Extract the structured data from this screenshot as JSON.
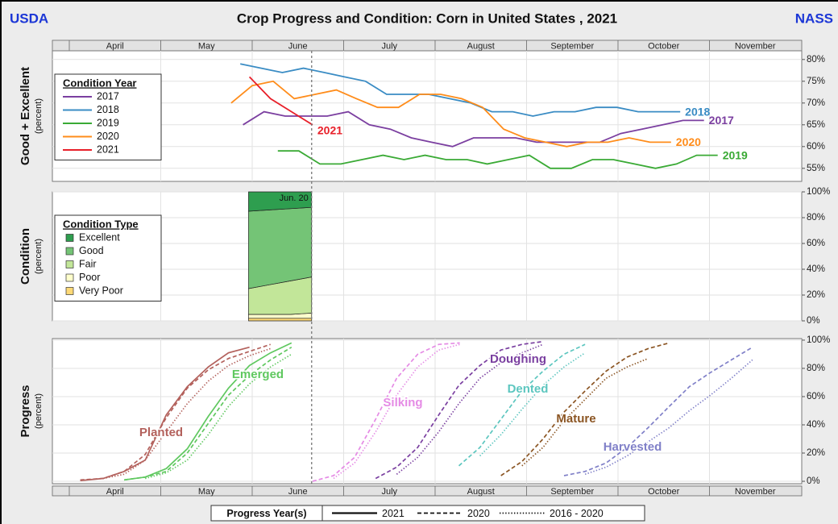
{
  "header": {
    "left": "USDA",
    "title": "Crop Progress and Condition: Corn in United States , 2021",
    "right": "NASS"
  },
  "x_axis": {
    "xlim": [
      -0.185,
      8.009
    ],
    "months": [
      "April",
      "May",
      "June",
      "July",
      "August",
      "September",
      "October",
      "November"
    ]
  },
  "current_week": {
    "x": 2.65,
    "label": "Jun. 20"
  },
  "chart_data": [
    {
      "type": "line",
      "ylabel": "Good + Excellent",
      "ylabel_unit": "(percent)",
      "legend_title": "Condition Year",
      "grid": true,
      "ylim": [
        52,
        82
      ],
      "yticks": [
        {
          "value": 55,
          "label": "55%"
        },
        {
          "value": 60,
          "label": "60%"
        },
        {
          "value": 65,
          "label": "65%"
        },
        {
          "value": 70,
          "label": "70%"
        },
        {
          "value": 75,
          "label": "75%"
        },
        {
          "value": 80,
          "label": "80%"
        }
      ],
      "series": [
        {
          "name": "2017",
          "color": "#7b3fa0",
          "x": [
            1.9,
            2.13,
            2.36,
            2.59,
            2.82,
            3.05,
            3.28,
            3.51,
            3.74,
            3.96,
            4.19,
            4.42,
            4.65,
            4.88,
            5.11,
            5.34,
            5.57,
            5.8,
            6.03,
            6.26,
            6.49,
            6.71,
            6.94
          ],
          "values": [
            65,
            68,
            67,
            67,
            67,
            68,
            65,
            64,
            62,
            61,
            60,
            62,
            62,
            62,
            61,
            61,
            61,
            61,
            63,
            64,
            65,
            66,
            66
          ]
        },
        {
          "name": "2018",
          "color": "#3a8cc4",
          "x": [
            1.87,
            2.1,
            2.33,
            2.56,
            2.79,
            3.01,
            3.24,
            3.47,
            3.7,
            3.93,
            4.16,
            4.39,
            4.62,
            4.85,
            5.07,
            5.3,
            5.53,
            5.76,
            5.99,
            6.22,
            6.45,
            6.68
          ],
          "values": [
            79,
            78,
            77,
            78,
            77,
            76,
            75,
            72,
            72,
            72,
            71,
            70,
            68,
            68,
            67,
            68,
            68,
            69,
            69,
            68,
            68,
            68
          ]
        },
        {
          "name": "2019",
          "color": "#3aaa35",
          "x": [
            2.28,
            2.51,
            2.74,
            2.97,
            3.2,
            3.43,
            3.66,
            3.89,
            4.12,
            4.35,
            4.57,
            4.8,
            5.03,
            5.26,
            5.49,
            5.72,
            5.95,
            6.18,
            6.41,
            6.64,
            6.86,
            7.09
          ],
          "values": [
            59,
            59,
            56,
            56,
            57,
            58,
            57,
            58,
            57,
            57,
            56,
            57,
            58,
            55,
            55,
            57,
            57,
            56,
            55,
            56,
            58,
            58
          ]
        },
        {
          "name": "2020",
          "color": "#ff8c1a",
          "x": [
            1.77,
            2.0,
            2.23,
            2.46,
            2.69,
            2.92,
            3.14,
            3.37,
            3.6,
            3.83,
            4.06,
            4.29,
            4.52,
            4.75,
            4.98,
            5.21,
            5.44,
            5.67,
            5.89,
            6.12,
            6.35,
            6.58
          ],
          "values": [
            70,
            74,
            75,
            71,
            72,
            73,
            71,
            69,
            69,
            72,
            72,
            71,
            69,
            64,
            62,
            61,
            60,
            61,
            61,
            62,
            61,
            61
          ]
        },
        {
          "name": "2021",
          "color": "#e8202a",
          "x": [
            1.97,
            2.2,
            2.43,
            2.66
          ],
          "values": [
            76,
            71,
            68,
            65
          ]
        }
      ]
    },
    {
      "type": "area",
      "ylabel": "Condition",
      "ylabel_unit": "(percent)",
      "legend_title": "Condition Type",
      "grid": true,
      "ylim": [
        0,
        100
      ],
      "yticks": [
        {
          "value": 0,
          "label": "0%"
        },
        {
          "value": 20,
          "label": "20%"
        },
        {
          "value": 40,
          "label": "40%"
        },
        {
          "value": 60,
          "label": "60%"
        },
        {
          "value": 80,
          "label": "80%"
        },
        {
          "value": 100,
          "label": "100%"
        }
      ],
      "x": [
        1.96,
        2.19,
        2.42,
        2.65
      ],
      "series": [
        {
          "name": "Excellent",
          "color": "#2e9e4f",
          "values": [
            15,
            14,
            13,
            12
          ]
        },
        {
          "name": "Good",
          "color": "#74c476",
          "values": [
            60,
            58,
            56,
            54
          ]
        },
        {
          "name": "Fair",
          "color": "#c2e699",
          "values": [
            20,
            23,
            26,
            28
          ]
        },
        {
          "name": "Poor",
          "color": "#ffffcc",
          "values": [
            3,
            3,
            3,
            4
          ]
        },
        {
          "name": "Very Poor",
          "color": "#fed976",
          "values": [
            2,
            2,
            2,
            2
          ]
        }
      ]
    },
    {
      "type": "line",
      "ylabel": "Progress",
      "ylabel_unit": "(percent)",
      "grid": true,
      "ylim": [
        -1.7,
        101.1
      ],
      "yticks": [
        {
          "value": 0,
          "label": "0%"
        },
        {
          "value": 20,
          "label": "20%"
        },
        {
          "value": 40,
          "label": "40%"
        },
        {
          "value": 60,
          "label": "60%"
        },
        {
          "value": 80,
          "label": "80%"
        },
        {
          "value": 100,
          "label": "100%"
        }
      ],
      "series": [
        {
          "name": "Planted",
          "color": "#b3615c",
          "lines": [
            {
              "dash": "solid",
              "x": [
                0.12,
                0.37,
                0.6,
                0.83,
                1.06,
                1.29,
                1.52,
                1.74,
                1.97
              ],
              "values": [
                0.5,
                2,
                7,
                15,
                47,
                67,
                81,
                91,
                95
              ]
            },
            {
              "dash": "dashed",
              "x": [
                0.12,
                0.37,
                0.6,
                0.83,
                1.06,
                1.29,
                1.52,
                1.74,
                1.97,
                2.2
              ],
              "values": [
                1,
                2,
                7,
                19,
                45,
                66,
                79,
                87,
                92,
                97
              ]
            },
            {
              "dash": "dotted",
              "x": [
                0.37,
                0.6,
                0.83,
                1.06,
                1.29,
                1.52,
                1.74,
                1.97,
                2.2
              ],
              "values": [
                2,
                5,
                15,
                35,
                55,
                71,
                82,
                89,
                94
              ]
            }
          ]
        },
        {
          "name": "Emerged",
          "color": "#5fc85f",
          "lines": [
            {
              "dash": "solid",
              "x": [
                0.6,
                0.83,
                1.06,
                1.29,
                1.52,
                1.74,
                1.97,
                2.2,
                2.43
              ],
              "values": [
                1,
                3,
                9,
                23,
                46,
                66,
                82,
                91,
                98
              ]
            },
            {
              "dash": "dashed",
              "x": [
                0.6,
                0.83,
                1.06,
                1.29,
                1.52,
                1.74,
                1.97,
                2.2,
                2.43
              ],
              "values": [
                1,
                3,
                7,
                20,
                41,
                61,
                75,
                86,
                95
              ]
            },
            {
              "dash": "dotted",
              "x": [
                0.83,
                1.06,
                1.29,
                1.52,
                1.74,
                1.97,
                2.2,
                2.43
              ],
              "values": [
                2,
                6,
                15,
                33,
                53,
                69,
                81,
                90
              ]
            }
          ]
        },
        {
          "name": "Silking",
          "color": "#e58be5",
          "lines": [
            {
              "dash": "dashed",
              "x": [
                2.66,
                2.89,
                3.12,
                3.35,
                3.58,
                3.81,
                4.04,
                4.27
              ],
              "values": [
                0,
                4,
                17,
                44,
                73,
                90,
                97,
                98
              ]
            },
            {
              "dash": "dotted",
              "x": [
                2.89,
                3.12,
                3.35,
                3.58,
                3.81,
                4.04,
                4.27
              ],
              "values": [
                2,
                13,
                35,
                61,
                81,
                93,
                97
              ]
            }
          ]
        },
        {
          "name": "Doughing",
          "color": "#7a3fa0",
          "lines": [
            {
              "dash": "dashed",
              "x": [
                3.35,
                3.58,
                3.81,
                4.04,
                4.26,
                4.49,
                4.72,
                4.95,
                5.18
              ],
              "values": [
                2,
                10,
                24,
                47,
                68,
                82,
                93,
                97,
                99
              ]
            },
            {
              "dash": "dotted",
              "x": [
                3.58,
                3.81,
                4.04,
                4.26,
                4.49,
                4.72,
                4.95,
                5.18
              ],
              "values": [
                5,
                17,
                35,
                55,
                73,
                84,
                91,
                97
              ]
            }
          ]
        },
        {
          "name": "Dented",
          "color": "#5cc6bf",
          "lines": [
            {
              "dash": "dashed",
              "x": [
                4.26,
                4.49,
                4.72,
                4.95,
                5.18,
                5.41,
                5.64
              ],
              "values": [
                11,
                24,
                44,
                64,
                78,
                90,
                97
              ]
            },
            {
              "dash": "dotted",
              "x": [
                4.49,
                4.72,
                4.95,
                5.18,
                5.41,
                5.64
              ],
              "values": [
                18,
                33,
                51,
                68,
                81,
                91
              ]
            }
          ]
        },
        {
          "name": "Mature",
          "color": "#8b5523",
          "lines": [
            {
              "dash": "dashed",
              "x": [
                4.72,
                4.95,
                5.18,
                5.41,
                5.64,
                5.87,
                6.1,
                6.33,
                6.56
              ],
              "values": [
                4,
                14,
                30,
                49,
                64,
                78,
                88,
                94,
                98
              ]
            },
            {
              "dash": "dotted",
              "x": [
                4.95,
                5.18,
                5.41,
                5.64,
                5.87,
                6.1,
                6.33
              ],
              "values": [
                11,
                24,
                43,
                58,
                73,
                81,
                87
              ]
            }
          ]
        },
        {
          "name": "Harvested",
          "color": "#8080c8",
          "lines": [
            {
              "dash": "dashed",
              "x": [
                5.41,
                5.64,
                5.87,
                6.1,
                6.33,
                6.56,
                6.78,
                7.01,
                7.24,
                7.47
              ],
              "values": [
                4,
                7,
                13,
                24,
                38,
                53,
                67,
                77,
                86,
                95
              ]
            },
            {
              "dash": "dotted",
              "x": [
                5.64,
                5.87,
                6.1,
                6.33,
                6.56,
                6.78,
                7.01,
                7.24,
                7.47
              ],
              "values": [
                5,
                10,
                18,
                28,
                38,
                50,
                61,
                73,
                86
              ]
            }
          ]
        }
      ]
    }
  ],
  "progress_legend": {
    "title": "Progress Year(s)",
    "entries": [
      {
        "name": "2021",
        "dash": "solid"
      },
      {
        "name": "2020",
        "dash": "dashed"
      },
      {
        "name": "2016 - 2020",
        "dash": "dotted"
      }
    ]
  }
}
